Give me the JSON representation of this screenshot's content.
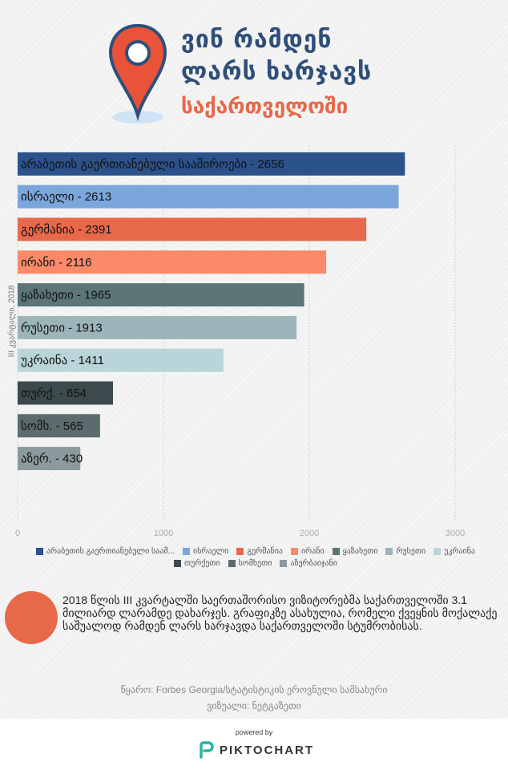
{
  "title": {
    "line1": "ვინ რამდენ",
    "line2": "ლარს ხარჯავს",
    "line3": "საქართველოში"
  },
  "chart_data": {
    "type": "bar",
    "orientation": "horizontal",
    "y_axis_label": "III კვარტალი, 2018",
    "xlim": [
      0,
      3000
    ],
    "xticks": [
      0,
      1000,
      2000,
      3000
    ],
    "grid": true,
    "legend_position": "bottom",
    "bars": [
      {
        "label": "არაბეთის გაერთიანებული საამიროები - 2656",
        "legend": "არაბეთის გაერთიანებული საამ...",
        "value": 2656,
        "color": "#2c528b"
      },
      {
        "label": "ისრაელი - 2613",
        "legend": "ისრაელი",
        "value": 2613,
        "color": "#7ba6dc"
      },
      {
        "label": "გერმანია - 2391",
        "legend": "გერმანია",
        "value": 2391,
        "color": "#e8684a"
      },
      {
        "label": "ირანი - 2116",
        "legend": "ირანი",
        "value": 2116,
        "color": "#fb8a6a"
      },
      {
        "label": "ყაზახეთი - 1965",
        "legend": "ყაზახეთი",
        "value": 1965,
        "color": "#5c7578"
      },
      {
        "label": "რუსეთი - 1913",
        "legend": "რუსეთი",
        "value": 1913,
        "color": "#9cb5ba"
      },
      {
        "label": "უკრაინა - 1411",
        "legend": "უკრაინა",
        "value": 1411,
        "color": "#b9d5d9"
      },
      {
        "label": "თურქ. - 654",
        "legend": "თურქეთი",
        "value": 654,
        "color": "#3c4a4d"
      },
      {
        "label": "სომხ. - 565",
        "legend": "სომხეთი",
        "value": 565,
        "color": "#5c6b6e"
      },
      {
        "label": "აზერ. - 430",
        "legend": "აზერბაიჯანი",
        "value": 430,
        "color": "#8b9a9d"
      }
    ]
  },
  "description": "2018 წლის III კვარტალში საერთაშორისო ვიზიტორებმა საქართველოში 3.1 მილიარდ ლარამდე დახარჯეს. გრაფიკზე ასახულია, რომელი ქვეყნის მოქალაქე საშუალოდ რამდენ ლარს ხარჯავდა საქართველოში სტუმრობისას.",
  "source": "წყარო: Forbes Georgia/სტატისტიკის ეროვნული სამსახური",
  "visual": "ვიზუალი: ნეტგაზეთი",
  "footer": {
    "powered": "powered by",
    "brand": "PIKTOCHART"
  },
  "colors": {
    "accent": "#e8684a",
    "title": "#2f4f7a",
    "pin": "#e8533a"
  }
}
